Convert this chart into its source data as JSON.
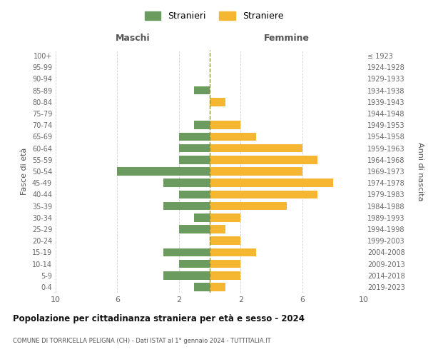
{
  "age_groups": [
    "0-4",
    "5-9",
    "10-14",
    "15-19",
    "20-24",
    "25-29",
    "30-34",
    "35-39",
    "40-44",
    "45-49",
    "50-54",
    "55-59",
    "60-64",
    "65-69",
    "70-74",
    "75-79",
    "80-84",
    "85-89",
    "90-94",
    "95-99",
    "100+"
  ],
  "birth_years": [
    "2019-2023",
    "2014-2018",
    "2009-2013",
    "2004-2008",
    "1999-2003",
    "1994-1998",
    "1989-1993",
    "1984-1988",
    "1979-1983",
    "1974-1978",
    "1969-1973",
    "1964-1968",
    "1959-1963",
    "1954-1958",
    "1949-1953",
    "1944-1948",
    "1939-1943",
    "1934-1938",
    "1929-1933",
    "1924-1928",
    "≤ 1923"
  ],
  "males": [
    1,
    3,
    2,
    3,
    0,
    2,
    1,
    3,
    2,
    3,
    6,
    2,
    2,
    2,
    1,
    0,
    0,
    1,
    0,
    0,
    0
  ],
  "females": [
    1,
    2,
    2,
    3,
    2,
    1,
    2,
    5,
    7,
    8,
    6,
    7,
    6,
    3,
    2,
    0,
    1,
    0,
    0,
    0,
    0
  ],
  "male_color": "#6b9b5e",
  "female_color": "#f5b731",
  "dashed_line_color": "#8b8b3a",
  "title": "Popolazione per cittadinanza straniera per età e sesso - 2024",
  "subtitle": "COMUNE DI TORRICELLA PELIGNA (CH) - Dati ISTAT al 1° gennaio 2024 - TUTTITALIA.IT",
  "xlabel_left": "Maschi",
  "xlabel_right": "Femmine",
  "ylabel_left": "Fasce di età",
  "ylabel_right": "Anni di nascita",
  "legend_male": "Stranieri",
  "legend_female": "Straniere",
  "xlim": 10,
  "background_color": "#ffffff",
  "grid_color": "#d0d0d0"
}
